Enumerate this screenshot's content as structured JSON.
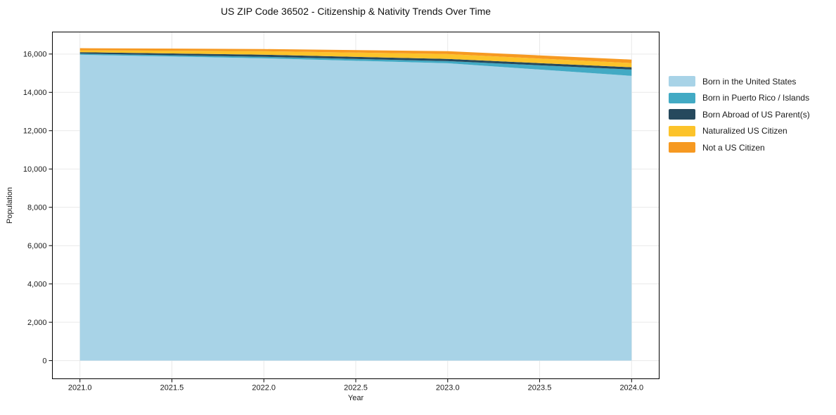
{
  "page": {
    "background": "#ffffff"
  },
  "chart_data": {
    "type": "area",
    "stacked": true,
    "title": "US ZIP Code 36502 - Citizenship & Nativity Trends Over Time",
    "xlabel": "Year",
    "ylabel": "Population",
    "x": [
      2021,
      2022,
      2023,
      2024
    ],
    "series": [
      {
        "name": "Born in the United States",
        "color": "#a8d3e7",
        "values": [
          15960,
          15780,
          15520,
          14860
        ]
      },
      {
        "name": "Born in Puerto Rico / Islands",
        "color": "#42aac4",
        "values": [
          60,
          75,
          110,
          330
        ]
      },
      {
        "name": "Born Abroad of US Parent(s)",
        "color": "#26495d",
        "values": [
          75,
          110,
          115,
          120
        ]
      },
      {
        "name": "Naturalized US Citizen",
        "color": "#fcc32a",
        "values": [
          100,
          185,
          255,
          220
        ]
      },
      {
        "name": "Not a US Citizen",
        "color": "#f69921",
        "values": [
          110,
          110,
          150,
          180
        ]
      }
    ],
    "x_ticks": [
      2021.0,
      2021.5,
      2022.0,
      2022.5,
      2023.0,
      2023.5,
      2024.0
    ],
    "x_tick_labels": [
      "2021.0",
      "2021.5",
      "2022.0",
      "2022.5",
      "2023.0",
      "2023.5",
      "2024.0"
    ],
    "y_ticks": [
      0,
      2000,
      4000,
      6000,
      8000,
      10000,
      12000,
      14000,
      16000
    ],
    "y_tick_labels": [
      "0",
      "2,000",
      "4,000",
      "6,000",
      "8,000",
      "10,000",
      "12,000",
      "14,000",
      "16,000"
    ],
    "xlim": [
      2020.85,
      2024.15
    ],
    "ylim": [
      -950,
      17150
    ],
    "grid": true,
    "gridline_color": "#e9e9e9",
    "axis_color": "#000000",
    "text_color": "#1a1a1a",
    "legend_position": "right"
  }
}
